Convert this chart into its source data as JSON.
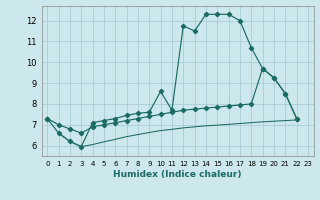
{
  "xlabel": "Humidex (Indice chaleur)",
  "bg_color": "#cce8ec",
  "grid_color": "#aaccd4",
  "line_color": "#1a6b60",
  "xlim": [
    -0.5,
    23.5
  ],
  "ylim": [
    5.5,
    12.7
  ],
  "yticks": [
    6,
    7,
    8,
    9,
    10,
    11,
    12
  ],
  "xticks": [
    0,
    1,
    2,
    3,
    4,
    5,
    6,
    7,
    8,
    9,
    10,
    11,
    12,
    13,
    14,
    15,
    16,
    17,
    18,
    19,
    20,
    21,
    22,
    23
  ],
  "line1_x": [
    0,
    1,
    2,
    3,
    4,
    5,
    6,
    7,
    8,
    9,
    10,
    11,
    12,
    13,
    14,
    15,
    16,
    17,
    18,
    19,
    20,
    21,
    22
  ],
  "line1_y": [
    7.3,
    6.6,
    6.2,
    5.95,
    7.1,
    7.2,
    7.3,
    7.45,
    7.55,
    7.6,
    8.6,
    7.7,
    11.75,
    11.5,
    12.3,
    12.3,
    12.3,
    12.0,
    10.7,
    9.7,
    9.25,
    8.5,
    7.3
  ],
  "line2_x": [
    0,
    1,
    2,
    3,
    4,
    5,
    6,
    7,
    8,
    9,
    10,
    11,
    12,
    13,
    14,
    15,
    16,
    17,
    18,
    19,
    20,
    21,
    22
  ],
  "line2_y": [
    7.3,
    7.0,
    6.8,
    6.6,
    6.9,
    7.0,
    7.1,
    7.2,
    7.3,
    7.4,
    7.5,
    7.6,
    7.7,
    7.75,
    7.8,
    7.85,
    7.9,
    7.95,
    8.0,
    9.7,
    9.25,
    8.5,
    7.3
  ],
  "line3_x": [
    1,
    2,
    3,
    4,
    5,
    6,
    7,
    8,
    9,
    10,
    11,
    12,
    13,
    14,
    15,
    16,
    17,
    18,
    19,
    20,
    21,
    22
  ],
  "line3_y": [
    6.6,
    6.2,
    5.95,
    6.05,
    6.18,
    6.3,
    6.43,
    6.53,
    6.63,
    6.72,
    6.78,
    6.85,
    6.9,
    6.95,
    6.98,
    7.02,
    7.06,
    7.1,
    7.14,
    7.17,
    7.2,
    7.23
  ]
}
